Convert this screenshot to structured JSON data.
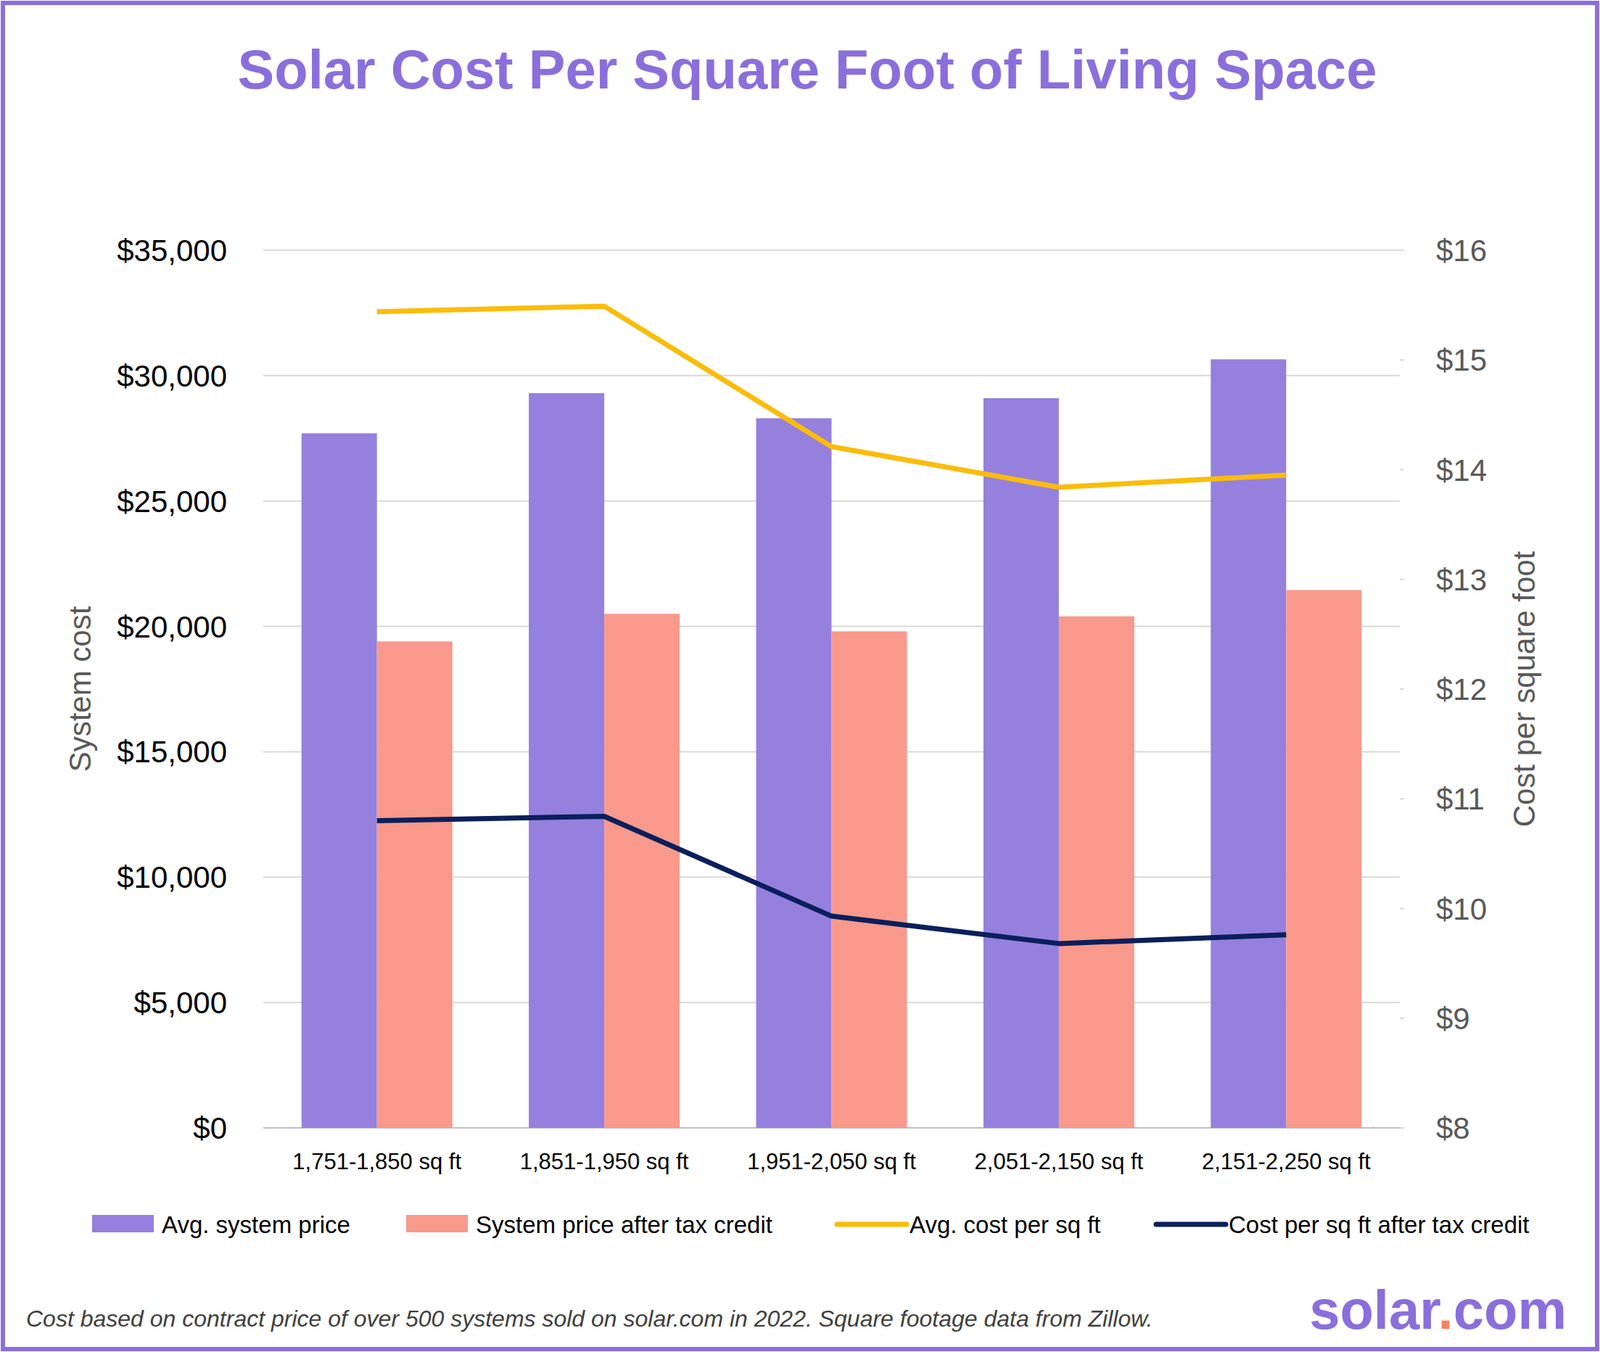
{
  "chart_data": {
    "type": "bar",
    "title": "Solar Cost Per Square Foot of Living Space",
    "y_label": "System cost",
    "y2_label": "Cost per square foot",
    "categories": [
      "1,751-1,850 sq ft",
      "1,851-1,950 sq ft",
      "1,951-2,050 sq ft",
      "2,051-2,150 sq ft",
      "2,151-2,250 sq ft"
    ],
    "series": [
      {
        "name": "Avg. system price",
        "type": "bar",
        "color": "#9580de",
        "values": [
          27700,
          29300,
          28300,
          29100,
          30650
        ]
      },
      {
        "name": "System price after tax credit",
        "type": "bar",
        "color": "#f8998b",
        "values": [
          19400,
          20500,
          19800,
          20400,
          21450
        ]
      },
      {
        "name": "Avg. cost per sq ft",
        "type": "line",
        "axis": "y2",
        "color": "#fbbc09",
        "values": [
          15.44,
          15.49,
          14.21,
          13.84,
          13.95
        ]
      },
      {
        "name": "Cost per sq ft after tax credit",
        "type": "line",
        "axis": "y2",
        "color": "#0a1f5c",
        "values": [
          10.8,
          10.84,
          9.93,
          9.68,
          9.76
        ]
      }
    ],
    "ylim": [
      0,
      35000
    ],
    "yticks": [
      {
        "value": 0,
        "label": "$0"
      },
      {
        "value": 5000,
        "label": "$5,000"
      },
      {
        "value": 10000,
        "label": "$10,000"
      },
      {
        "value": 15000,
        "label": "$15,000"
      },
      {
        "value": 20000,
        "label": "$20,000"
      },
      {
        "value": 25000,
        "label": "$25,000"
      },
      {
        "value": 30000,
        "label": "$30,000"
      },
      {
        "value": 35000,
        "label": "$35,000"
      }
    ],
    "y2lim": [
      8,
      16
    ],
    "y2ticks": [
      {
        "value": 8,
        "label": "$8"
      },
      {
        "value": 9,
        "label": "$9"
      },
      {
        "value": 10,
        "label": "$10"
      },
      {
        "value": 11,
        "label": "$11"
      },
      {
        "value": 12,
        "label": "$12"
      },
      {
        "value": 13,
        "label": "$13"
      },
      {
        "value": 14,
        "label": "$14"
      },
      {
        "value": 15,
        "label": "$15"
      },
      {
        "value": 16,
        "label": "$16"
      }
    ],
    "grid": true,
    "legend": "bottom",
    "annotations": [
      "Cost based on contract price of over 500 systems sold on solar.com in 2022. Square footage data from Zillow.",
      "solar.com"
    ]
  }
}
